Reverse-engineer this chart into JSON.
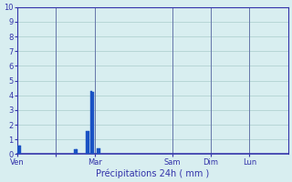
{
  "title": "",
  "xlabel": "Précipitations 24h ( mm )",
  "ylabel": "",
  "background_color": "#d8eef0",
  "bar_color": "#1a52c4",
  "bar_edge_color": "#1a52c4",
  "grid_color": "#aacccc",
  "axis_color": "#3333aa",
  "tick_label_color": "#3333aa",
  "xlabel_color": "#3333aa",
  "ylim": [
    0,
    10
  ],
  "yticks": [
    0,
    1,
    2,
    3,
    4,
    5,
    6,
    7,
    8,
    9,
    10
  ],
  "xlim": [
    0,
    336
  ],
  "day_positions": [
    0,
    48,
    96,
    192,
    240,
    288
  ],
  "day_labels": [
    "Ven",
    "",
    "Mar",
    "Sam",
    "Dim",
    "Lun"
  ],
  "bar_data": [
    {
      "x": 2,
      "height": 0.6
    },
    {
      "x": 4,
      "height": 0.55
    },
    {
      "x": 72,
      "height": 0.35
    },
    {
      "x": 74,
      "height": 0.35
    },
    {
      "x": 86,
      "height": 1.55
    },
    {
      "x": 88,
      "height": 1.55
    },
    {
      "x": 92,
      "height": 4.3
    },
    {
      "x": 94,
      "height": 4.25
    },
    {
      "x": 100,
      "height": 0.4
    },
    {
      "x": 102,
      "height": 0.38
    }
  ],
  "vline_positions": [
    0,
    48,
    96,
    192,
    240,
    288
  ],
  "bar_width": 2.5
}
